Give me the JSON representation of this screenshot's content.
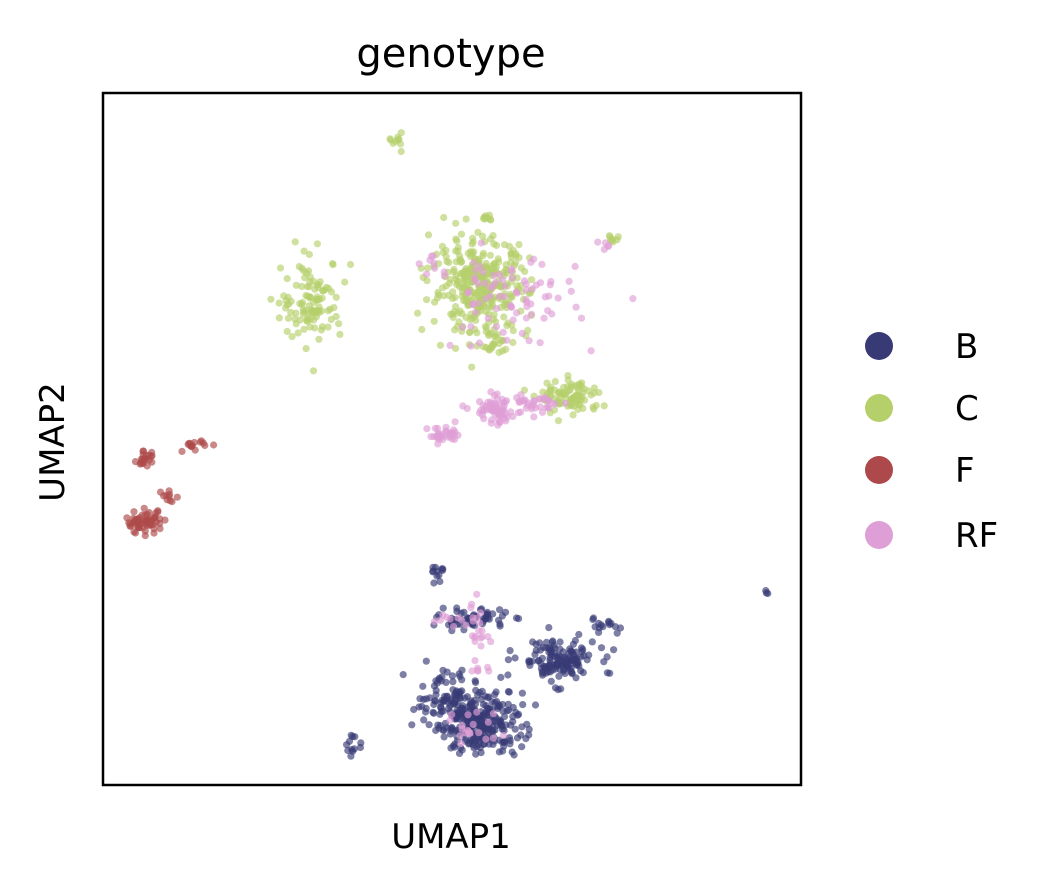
{
  "chart_data": {
    "type": "scatter",
    "title": "genotype",
    "xlabel": "UMAP1",
    "ylabel": "UMAP2",
    "xlim": [
      0,
      10
    ],
    "ylim": [
      0,
      10
    ],
    "show_ticks": false,
    "grid": false,
    "legend_position": "right",
    "series": [
      {
        "name": "B",
        "color": "#373a74",
        "clusters": [
          {
            "cx": 5.4,
            "cy": 0.9,
            "sx": 0.3,
            "sy": 0.22,
            "n": 260
          },
          {
            "cx": 4.9,
            "cy": 1.3,
            "sx": 0.22,
            "sy": 0.18,
            "n": 70
          },
          {
            "cx": 6.5,
            "cy": 1.8,
            "sx": 0.28,
            "sy": 0.16,
            "n": 140
          },
          {
            "cx": 5.3,
            "cy": 2.4,
            "sx": 0.25,
            "sy": 0.07,
            "n": 60
          },
          {
            "cx": 4.8,
            "cy": 3.1,
            "sx": 0.05,
            "sy": 0.06,
            "n": 12
          },
          {
            "cx": 7.2,
            "cy": 2.3,
            "sx": 0.12,
            "sy": 0.06,
            "n": 15
          },
          {
            "cx": 3.6,
            "cy": 0.55,
            "sx": 0.06,
            "sy": 0.08,
            "n": 12
          },
          {
            "cx": 9.5,
            "cy": 2.8,
            "sx": 0.02,
            "sy": 0.02,
            "n": 3
          }
        ]
      },
      {
        "name": "C",
        "color": "#b5cf6b",
        "clusters": [
          {
            "cx": 5.4,
            "cy": 7.2,
            "sx": 0.35,
            "sy": 0.35,
            "n": 330
          },
          {
            "cx": 3.0,
            "cy": 7.0,
            "sx": 0.22,
            "sy": 0.3,
            "n": 110
          },
          {
            "cx": 6.7,
            "cy": 5.6,
            "sx": 0.22,
            "sy": 0.12,
            "n": 90
          },
          {
            "cx": 4.2,
            "cy": 9.3,
            "sx": 0.04,
            "sy": 0.06,
            "n": 10
          },
          {
            "cx": 5.5,
            "cy": 8.2,
            "sx": 0.04,
            "sy": 0.03,
            "n": 8
          },
          {
            "cx": 7.3,
            "cy": 7.9,
            "sx": 0.05,
            "sy": 0.03,
            "n": 8
          },
          {
            "cx": 5.6,
            "cy": 6.4,
            "sx": 0.1,
            "sy": 0.08,
            "n": 20
          }
        ]
      },
      {
        "name": "F",
        "color": "#ad494a",
        "clusters": [
          {
            "cx": 0.6,
            "cy": 3.8,
            "sx": 0.14,
            "sy": 0.08,
            "n": 60
          },
          {
            "cx": 0.6,
            "cy": 4.7,
            "sx": 0.06,
            "sy": 0.06,
            "n": 22
          },
          {
            "cx": 1.3,
            "cy": 4.9,
            "sx": 0.08,
            "sy": 0.04,
            "n": 16
          },
          {
            "cx": 0.95,
            "cy": 4.2,
            "sx": 0.05,
            "sy": 0.05,
            "n": 10
          }
        ]
      },
      {
        "name": "RF",
        "color": "#de9ed6",
        "clusters": [
          {
            "cx": 5.6,
            "cy": 5.4,
            "sx": 0.15,
            "sy": 0.1,
            "n": 60
          },
          {
            "cx": 4.9,
            "cy": 5.05,
            "sx": 0.12,
            "sy": 0.06,
            "n": 35
          },
          {
            "cx": 6.2,
            "cy": 5.5,
            "sx": 0.2,
            "sy": 0.08,
            "n": 35
          },
          {
            "cx": 5.8,
            "cy": 7.0,
            "sx": 0.5,
            "sy": 0.35,
            "n": 80
          },
          {
            "cx": 7.2,
            "cy": 7.8,
            "sx": 0.05,
            "sy": 0.03,
            "n": 5
          },
          {
            "cx": 4.7,
            "cy": 7.5,
            "sx": 0.1,
            "sy": 0.06,
            "n": 8
          },
          {
            "cx": 5.4,
            "cy": 2.1,
            "sx": 0.1,
            "sy": 0.3,
            "n": 25
          },
          {
            "cx": 5.3,
            "cy": 0.8,
            "sx": 0.2,
            "sy": 0.15,
            "n": 20
          },
          {
            "cx": 5.0,
            "cy": 2.4,
            "sx": 0.15,
            "sy": 0.05,
            "n": 10
          }
        ]
      }
    ]
  }
}
